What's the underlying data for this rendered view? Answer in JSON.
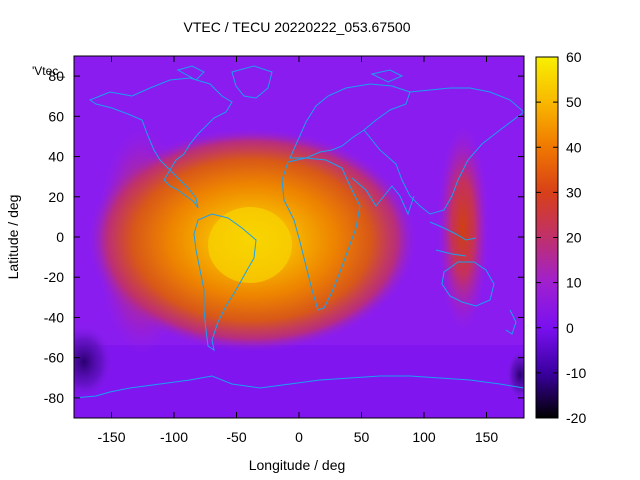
{
  "chart_data": {
    "type": "heatmap",
    "title": "VTEC / TECU 20220222_053.67500",
    "xlabel": "Longitude / deg",
    "ylabel": "Latitude / deg",
    "legend_label": "'Vtec_",
    "legend_placement": "top-left",
    "xlim": [
      -180,
      180
    ],
    "ylim": [
      -90,
      90
    ],
    "x_ticks": [
      -150,
      -100,
      -50,
      0,
      50,
      100,
      150
    ],
    "y_ticks": [
      -80,
      -60,
      -40,
      -20,
      0,
      20,
      40,
      60,
      80
    ],
    "colorbar": {
      "range": [
        -20,
        60
      ],
      "ticks": [
        -20,
        -10,
        0,
        10,
        20,
        30,
        40,
        50,
        60
      ],
      "palette": [
        "#000000",
        "#3a00a0",
        "#7a10f0",
        "#a020d0",
        "#c0306a",
        "#d84018",
        "#f07800",
        "#f8b800",
        "#f8f000"
      ]
    },
    "grid": false,
    "background_value": 5,
    "features": [
      {
        "name": "peak",
        "lon": -40,
        "lat": -5,
        "value": 50
      },
      {
        "name": "secondary-band",
        "lon": 130,
        "lat": 10,
        "value": 30
      }
    ],
    "overlay": "coastlines"
  }
}
